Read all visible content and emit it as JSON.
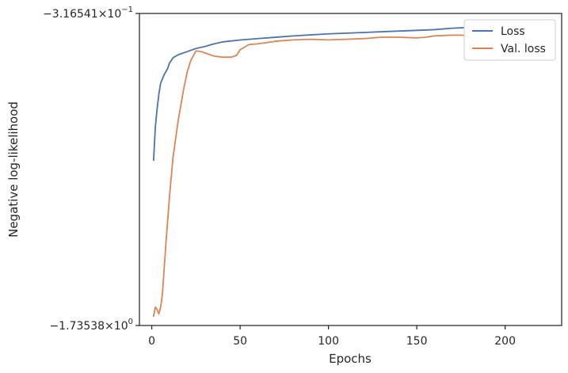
{
  "chart_data": {
    "type": "line",
    "xlabel": "Epochs",
    "ylabel": "Negative log-likelihood",
    "xlim": [
      -7,
      232
    ],
    "ylim": [
      -1.73538,
      -0.316541
    ],
    "y_scale": "symlog",
    "x_ticks": [
      0,
      50,
      100,
      150,
      200
    ],
    "x_tick_labels": [
      "0",
      "50",
      "100",
      "150",
      "200"
    ],
    "y_tick_labels": [
      {
        "base": "−3.16541",
        "exp": "−1"
      },
      {
        "base": "−1.73538",
        "exp": "0"
      }
    ],
    "grid": false,
    "legend_position": "top-right",
    "series": [
      {
        "name": "Loss",
        "color": "#4c72b0",
        "x": [
          1,
          2,
          3,
          4,
          5,
          7,
          9,
          10,
          12,
          15,
          20,
          25,
          30,
          35,
          40,
          50,
          60,
          70,
          80,
          100,
          120,
          140,
          160,
          170,
          180,
          190,
          200,
          210,
          220,
          224
        ],
        "y": [
          -0.7106,
          -0.5915,
          -0.5361,
          -0.4936,
          -0.4652,
          -0.4436,
          -0.4287,
          -0.4165,
          -0.4043,
          -0.3976,
          -0.3908,
          -0.3841,
          -0.38,
          -0.3746,
          -0.3705,
          -0.3665,
          -0.3638,
          -0.3611,
          -0.3584,
          -0.3543,
          -0.3516,
          -0.3489,
          -0.3462,
          -0.3435,
          -0.3421,
          -0.3408,
          -0.3394,
          -0.3381,
          -0.3367,
          -0.3367
        ]
      },
      {
        "name": "Val. loss",
        "color": "#dd8452",
        "x": [
          1,
          2,
          3,
          4,
          5,
          6,
          8,
          10,
          12,
          15,
          18,
          20,
          22,
          25,
          28,
          30,
          35,
          40,
          45,
          48,
          50,
          55,
          60,
          70,
          80,
          90,
          100,
          110,
          120,
          130,
          140,
          150,
          155,
          160,
          170,
          175,
          180,
          190,
          200,
          210,
          220,
          224
        ],
        "y": [
          -1.6558,
          -1.571,
          -1.5926,
          -1.6304,
          -1.571,
          -1.467,
          -1.1125,
          -0.8648,
          -0.6982,
          -0.5681,
          -0.4815,
          -0.4381,
          -0.411,
          -0.3893,
          -0.3907,
          -0.3935,
          -0.4003,
          -0.403,
          -0.403,
          -0.3989,
          -0.3867,
          -0.3759,
          -0.3745,
          -0.3691,
          -0.3664,
          -0.3651,
          -0.3664,
          -0.3651,
          -0.3637,
          -0.361,
          -0.361,
          -0.3624,
          -0.361,
          -0.3583,
          -0.3569,
          -0.3569,
          -0.3583,
          -0.3583,
          -0.361,
          -0.3624,
          -0.3637,
          -0.3637
        ]
      }
    ]
  }
}
